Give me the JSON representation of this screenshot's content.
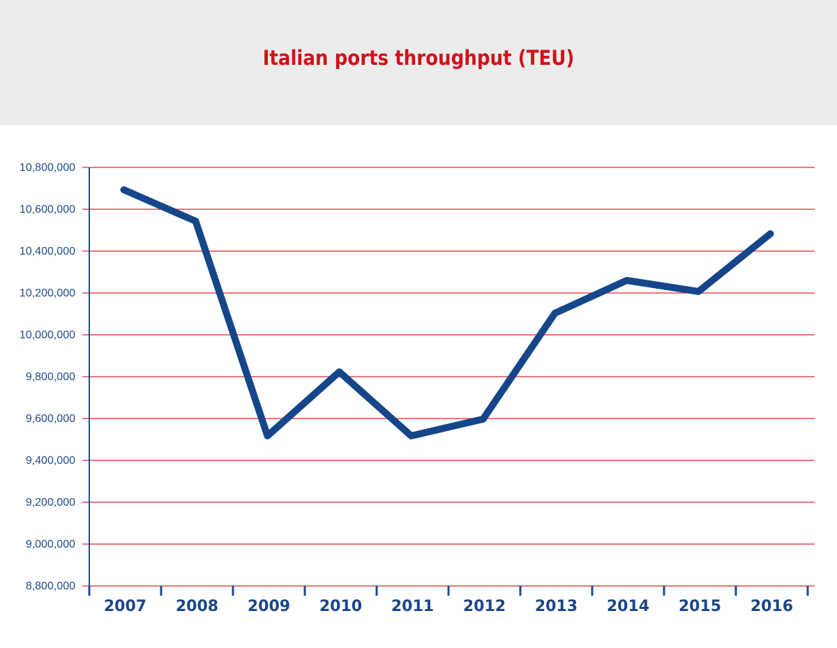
{
  "chart_data": {
    "type": "line",
    "title": "Italian ports throughput (TEU)",
    "xlabel": "",
    "ylabel": "",
    "categories": [
      "2007",
      "2008",
      "2009",
      "2010",
      "2011",
      "2012",
      "2013",
      "2014",
      "2015",
      "2016"
    ],
    "values": [
      10693000,
      10543000,
      9517000,
      9823000,
      9517000,
      9597000,
      10103000,
      10260000,
      10207000,
      10483000
    ],
    "ylim": [
      8800000,
      10800000
    ],
    "yticks": [
      8800000,
      9000000,
      9200000,
      9400000,
      9600000,
      9800000,
      10000000,
      10200000,
      10400000,
      10600000,
      10800000
    ],
    "ytick_labels": [
      "8,800,000",
      "9,000,000",
      "9,200,000",
      "9,400,000",
      "9,600,000",
      "9,800,000",
      "10,000,000",
      "10,200,000",
      "10,400,000",
      "10,600,000",
      "10,800,000"
    ],
    "grid": true,
    "colors": {
      "line": "#16468a",
      "grid": "#e0252b",
      "axis": "#1f4a8c",
      "title": "#d0121b",
      "header_bg": "#ececec"
    }
  }
}
